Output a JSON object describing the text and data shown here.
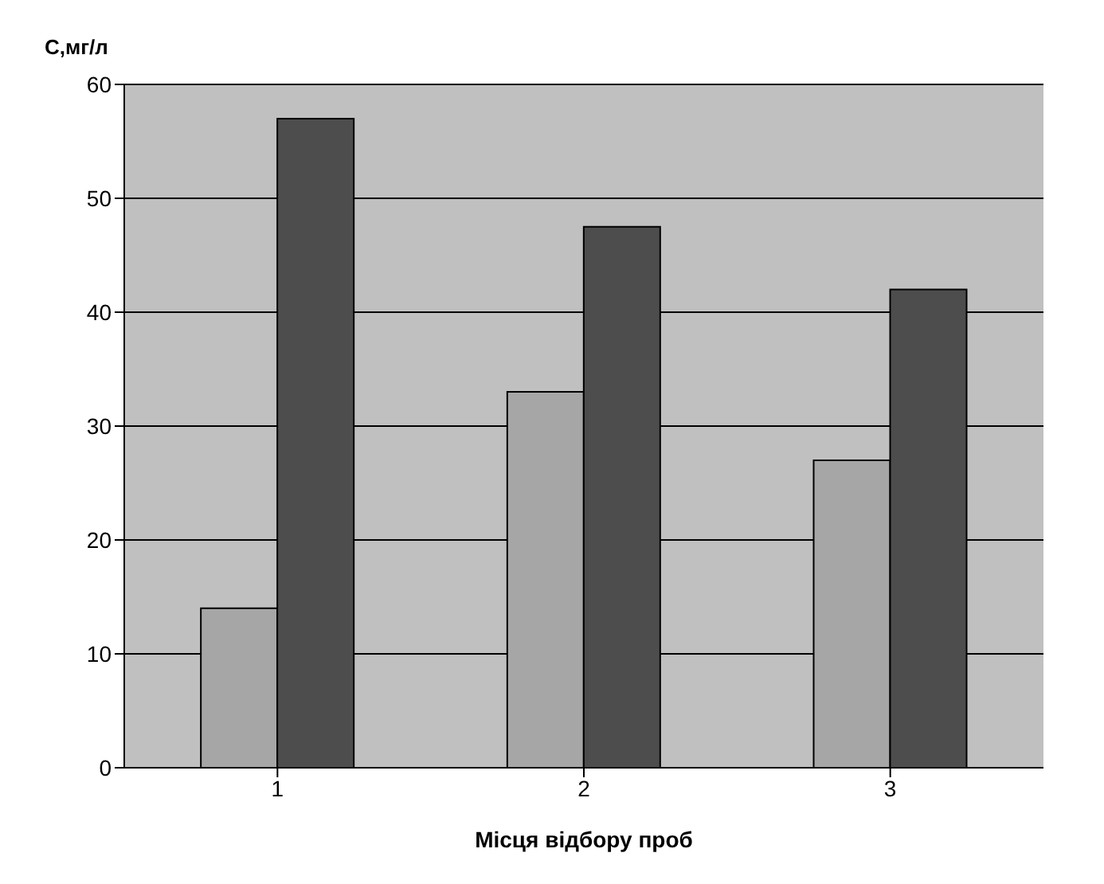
{
  "chart_data": {
    "type": "bar",
    "xlabel": "Місця відбору проб",
    "ylabel": "С,мг/л",
    "categories": [
      "1",
      "2",
      "3"
    ],
    "series": [
      {
        "color": "#a6a6a6",
        "values": [
          14,
          33,
          27
        ]
      },
      {
        "color": "#4d4d4d",
        "values": [
          57,
          47.5,
          42
        ]
      }
    ],
    "ylim": [
      0,
      60
    ],
    "yticks": [
      0,
      10,
      20,
      30,
      40,
      50,
      60
    ],
    "grid": "y",
    "legend": false
  }
}
